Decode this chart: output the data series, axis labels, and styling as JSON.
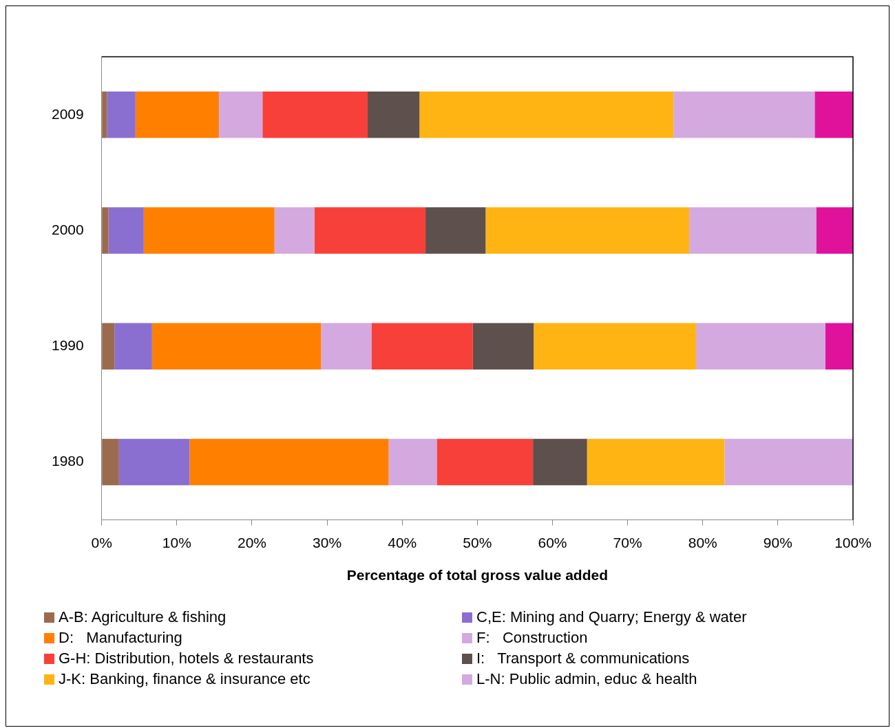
{
  "chart_data": {
    "type": "bar",
    "orientation": "horizontal",
    "stacked": true,
    "xlabel": "Percentage of total gross value added",
    "categories": [
      "2009",
      "2000",
      "1990",
      "1980"
    ],
    "xlim": [
      0,
      100
    ],
    "xticks": [
      {
        "value": 0,
        "label": "0%"
      },
      {
        "value": 10,
        "label": "10%"
      },
      {
        "value": 20,
        "label": "20%"
      },
      {
        "value": 30,
        "label": "30%"
      },
      {
        "value": 40,
        "label": "40%"
      },
      {
        "value": 50,
        "label": "50%"
      },
      {
        "value": 60,
        "label": "60%"
      },
      {
        "value": 70,
        "label": "70%"
      },
      {
        "value": 80,
        "label": "80%"
      },
      {
        "value": 90,
        "label": "90%"
      },
      {
        "value": 100,
        "label": "100%"
      }
    ],
    "grid": false,
    "legend": "bottom",
    "series": [
      {
        "name": "A-B: Agriculture & fishing",
        "color": "#9b6b4e",
        "values": [
          0.7,
          0.9,
          1.7,
          2.3
        ]
      },
      {
        "name": "C,E: Mining and Quarry; Energy & water",
        "color": "#8b6fd0",
        "values": [
          3.8,
          4.7,
          5.0,
          9.4
        ]
      },
      {
        "name": "D:   Manufacturing",
        "color": "#ff8000",
        "values": [
          11.1,
          17.4,
          22.5,
          26.5
        ]
      },
      {
        "name": "F:   Construction",
        "color": "#d3a9e0",
        "values": [
          5.8,
          5.3,
          6.7,
          6.4
        ]
      },
      {
        "name": "G-H: Distribution, hotels & restaurants",
        "color": "#f8403a",
        "values": [
          14.0,
          14.8,
          13.5,
          12.8
        ]
      },
      {
        "name": "I:   Transport & communications",
        "color": "#5e504c",
        "values": [
          6.9,
          8.0,
          8.1,
          7.2
        ]
      },
      {
        "name": "J-K: Banking, finance & insurance etc",
        "color": "#ffb414",
        "values": [
          33.8,
          27.1,
          21.6,
          18.3
        ]
      },
      {
        "name": "L-N: Public admin, educ & health",
        "color": "#d3a9e0",
        "values": [
          18.8,
          16.9,
          17.2,
          17.1
        ]
      },
      {
        "color": "#e0129c",
        "values": [
          5.1,
          4.9,
          3.7,
          null
        ]
      }
    ]
  }
}
